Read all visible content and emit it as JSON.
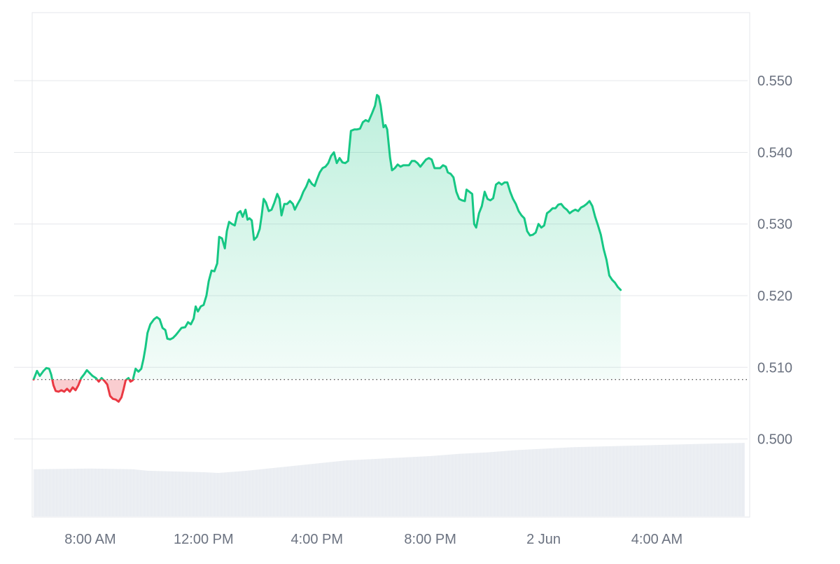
{
  "chart_data": {
    "type": "area",
    "baseline": 0.5083,
    "ylim": [
      0.4892,
      0.5595
    ],
    "grid": true,
    "colors": {
      "up_line": "#16c784",
      "up_fill": "#16c784",
      "down_line": "#ea3943",
      "down_fill": "#ea3943",
      "baseline": "#555555",
      "volume": "#e6eaef",
      "grid": "#e5e7eb",
      "tick_label": "#6b7280"
    },
    "y_ticks": [
      {
        "value": 0.55,
        "label": "0.550"
      },
      {
        "value": 0.54,
        "label": "0.540"
      },
      {
        "value": 0.53,
        "label": "0.530"
      },
      {
        "value": 0.52,
        "label": "0.520"
      },
      {
        "value": 0.51,
        "label": "0.510"
      },
      {
        "value": 0.5,
        "label": "0.500"
      }
    ],
    "x_ticks": [
      {
        "hour": 2,
        "label": "8:00 AM"
      },
      {
        "hour": 6,
        "label": "12:00 PM"
      },
      {
        "hour": 10,
        "label": "4:00 PM"
      },
      {
        "hour": 14,
        "label": "8:00 PM"
      },
      {
        "hour": 18,
        "label": "2 Jun"
      },
      {
        "hour": 22,
        "label": "4:00 AM"
      }
    ],
    "x_range_hours": [
      0,
      25.2
    ],
    "price_series": {
      "name": "Price",
      "points": [
        [
          0.0,
          0.5083
        ],
        [
          0.12,
          0.5095
        ],
        [
          0.22,
          0.5088
        ],
        [
          0.35,
          0.5095
        ],
        [
          0.45,
          0.5099
        ],
        [
          0.55,
          0.5098
        ],
        [
          0.62,
          0.509
        ],
        [
          0.7,
          0.5075
        ],
        [
          0.78,
          0.5067
        ],
        [
          0.88,
          0.5066
        ],
        [
          0.98,
          0.5068
        ],
        [
          1.08,
          0.5066
        ],
        [
          1.18,
          0.507
        ],
        [
          1.28,
          0.5066
        ],
        [
          1.38,
          0.5072
        ],
        [
          1.48,
          0.5068
        ],
        [
          1.58,
          0.5075
        ],
        [
          1.68,
          0.5085
        ],
        [
          1.78,
          0.509
        ],
        [
          1.88,
          0.5096
        ],
        [
          1.98,
          0.5092
        ],
        [
          2.08,
          0.5088
        ],
        [
          2.2,
          0.5085
        ],
        [
          2.3,
          0.508
        ],
        [
          2.4,
          0.5085
        ],
        [
          2.5,
          0.5081
        ],
        [
          2.6,
          0.5076
        ],
        [
          2.7,
          0.506
        ],
        [
          2.8,
          0.5056
        ],
        [
          2.9,
          0.5055
        ],
        [
          3.0,
          0.5052
        ],
        [
          3.1,
          0.5058
        ],
        [
          3.18,
          0.507
        ],
        [
          3.25,
          0.5082
        ],
        [
          3.35,
          0.5085
        ],
        [
          3.42,
          0.508
        ],
        [
          3.5,
          0.5082
        ],
        [
          3.6,
          0.5098
        ],
        [
          3.7,
          0.5094
        ],
        [
          3.8,
          0.5098
        ],
        [
          3.88,
          0.5112
        ],
        [
          3.95,
          0.5128
        ],
        [
          4.02,
          0.5148
        ],
        [
          4.12,
          0.516
        ],
        [
          4.25,
          0.5167
        ],
        [
          4.35,
          0.517
        ],
        [
          4.45,
          0.5167
        ],
        [
          4.55,
          0.5155
        ],
        [
          4.65,
          0.5152
        ],
        [
          4.72,
          0.514
        ],
        [
          4.82,
          0.5139
        ],
        [
          4.92,
          0.5141
        ],
        [
          5.02,
          0.5145
        ],
        [
          5.12,
          0.515
        ],
        [
          5.22,
          0.5155
        ],
        [
          5.35,
          0.5156
        ],
        [
          5.45,
          0.5163
        ],
        [
          5.55,
          0.516
        ],
        [
          5.65,
          0.5168
        ],
        [
          5.72,
          0.5185
        ],
        [
          5.8,
          0.5178
        ],
        [
          5.9,
          0.5185
        ],
        [
          6.0,
          0.5187
        ],
        [
          6.1,
          0.52
        ],
        [
          6.18,
          0.522
        ],
        [
          6.28,
          0.5235
        ],
        [
          6.38,
          0.5234
        ],
        [
          6.48,
          0.5245
        ],
        [
          6.55,
          0.5282
        ],
        [
          6.65,
          0.528
        ],
        [
          6.75,
          0.5266
        ],
        [
          6.82,
          0.529
        ],
        [
          6.9,
          0.5303
        ],
        [
          7.0,
          0.53
        ],
        [
          7.1,
          0.5298
        ],
        [
          7.2,
          0.5315
        ],
        [
          7.3,
          0.5318
        ],
        [
          7.38,
          0.531
        ],
        [
          7.48,
          0.532
        ],
        [
          7.55,
          0.5306
        ],
        [
          7.62,
          0.5308
        ],
        [
          7.7,
          0.5305
        ],
        [
          7.78,
          0.5278
        ],
        [
          7.88,
          0.5282
        ],
        [
          7.98,
          0.5293
        ],
        [
          8.05,
          0.5312
        ],
        [
          8.12,
          0.5335
        ],
        [
          8.2,
          0.533
        ],
        [
          8.3,
          0.5318
        ],
        [
          8.4,
          0.532
        ],
        [
          8.5,
          0.533
        ],
        [
          8.6,
          0.5342
        ],
        [
          8.68,
          0.5335
        ],
        [
          8.75,
          0.5312
        ],
        [
          8.85,
          0.5328
        ],
        [
          8.95,
          0.5328
        ],
        [
          9.05,
          0.5332
        ],
        [
          9.15,
          0.5328
        ],
        [
          9.22,
          0.532
        ],
        [
          9.32,
          0.5328
        ],
        [
          9.42,
          0.5335
        ],
        [
          9.52,
          0.5345
        ],
        [
          9.62,
          0.5352
        ],
        [
          9.72,
          0.5362
        ],
        [
          9.82,
          0.5356
        ],
        [
          9.92,
          0.5353
        ],
        [
          10.0,
          0.5362
        ],
        [
          10.1,
          0.5372
        ],
        [
          10.2,
          0.5378
        ],
        [
          10.3,
          0.538
        ],
        [
          10.4,
          0.5385
        ],
        [
          10.5,
          0.5395
        ],
        [
          10.6,
          0.54
        ],
        [
          10.7,
          0.5385
        ],
        [
          10.8,
          0.5392
        ],
        [
          10.9,
          0.5386
        ],
        [
          11.0,
          0.5385
        ],
        [
          11.1,
          0.5388
        ],
        [
          11.2,
          0.543
        ],
        [
          11.32,
          0.5432
        ],
        [
          11.42,
          0.5432
        ],
        [
          11.52,
          0.5433
        ],
        [
          11.62,
          0.5442
        ],
        [
          11.72,
          0.5445
        ],
        [
          11.82,
          0.5443
        ],
        [
          11.95,
          0.5455
        ],
        [
          12.05,
          0.5465
        ],
        [
          12.12,
          0.548
        ],
        [
          12.18,
          0.5478
        ],
        [
          12.25,
          0.5465
        ],
        [
          12.3,
          0.545
        ],
        [
          12.35,
          0.5435
        ],
        [
          12.42,
          0.5438
        ],
        [
          12.48,
          0.5432
        ],
        [
          12.58,
          0.5393
        ],
        [
          12.65,
          0.5375
        ],
        [
          12.75,
          0.5378
        ],
        [
          12.85,
          0.5383
        ],
        [
          12.95,
          0.538
        ],
        [
          13.05,
          0.5382
        ],
        [
          13.15,
          0.5382
        ],
        [
          13.25,
          0.5382
        ],
        [
          13.35,
          0.5388
        ],
        [
          13.45,
          0.5388
        ],
        [
          13.55,
          0.5385
        ],
        [
          13.65,
          0.538
        ],
        [
          13.75,
          0.5385
        ],
        [
          13.85,
          0.539
        ],
        [
          13.95,
          0.5392
        ],
        [
          14.05,
          0.539
        ],
        [
          14.15,
          0.5378
        ],
        [
          14.25,
          0.5378
        ],
        [
          14.35,
          0.5378
        ],
        [
          14.45,
          0.5382
        ],
        [
          14.55,
          0.538
        ],
        [
          14.62,
          0.5372
        ],
        [
          14.72,
          0.537
        ],
        [
          14.82,
          0.5365
        ],
        [
          14.92,
          0.5345
        ],
        [
          15.02,
          0.5335
        ],
        [
          15.12,
          0.5333
        ],
        [
          15.22,
          0.5332
        ],
        [
          15.28,
          0.5348
        ],
        [
          15.38,
          0.5345
        ],
        [
          15.48,
          0.5342
        ],
        [
          15.55,
          0.53
        ],
        [
          15.62,
          0.5295
        ],
        [
          15.72,
          0.5315
        ],
        [
          15.82,
          0.5325
        ],
        [
          15.92,
          0.5345
        ],
        [
          16.02,
          0.5335
        ],
        [
          16.12,
          0.5333
        ],
        [
          16.22,
          0.5336
        ],
        [
          16.32,
          0.5355
        ],
        [
          16.42,
          0.5358
        ],
        [
          16.52,
          0.5355
        ],
        [
          16.62,
          0.5358
        ],
        [
          16.72,
          0.5358
        ],
        [
          16.82,
          0.5345
        ],
        [
          16.92,
          0.5335
        ],
        [
          17.02,
          0.5328
        ],
        [
          17.12,
          0.5318
        ],
        [
          17.22,
          0.5312
        ],
        [
          17.32,
          0.5308
        ],
        [
          17.42,
          0.529
        ],
        [
          17.52,
          0.5284
        ],
        [
          17.62,
          0.5285
        ],
        [
          17.72,
          0.5288
        ],
        [
          17.82,
          0.53
        ],
        [
          17.92,
          0.5295
        ],
        [
          18.02,
          0.5298
        ],
        [
          18.12,
          0.5315
        ],
        [
          18.22,
          0.5318
        ],
        [
          18.32,
          0.5322
        ],
        [
          18.42,
          0.5322
        ],
        [
          18.52,
          0.5327
        ],
        [
          18.62,
          0.5328
        ],
        [
          18.72,
          0.5323
        ],
        [
          18.82,
          0.532
        ],
        [
          18.92,
          0.5315
        ],
        [
          19.02,
          0.5318
        ],
        [
          19.12,
          0.532
        ],
        [
          19.22,
          0.5318
        ],
        [
          19.32,
          0.5323
        ],
        [
          19.42,
          0.5325
        ],
        [
          19.52,
          0.5328
        ],
        [
          19.62,
          0.5332
        ],
        [
          19.72,
          0.5325
        ],
        [
          19.82,
          0.531
        ],
        [
          19.92,
          0.5298
        ],
        [
          20.02,
          0.5285
        ],
        [
          20.12,
          0.5265
        ],
        [
          20.22,
          0.525
        ],
        [
          20.32,
          0.5228
        ],
        [
          20.42,
          0.5222
        ],
        [
          20.52,
          0.5218
        ],
        [
          20.62,
          0.5212
        ],
        [
          20.72,
          0.5208
        ]
      ]
    },
    "volume_series": {
      "name": "Volume",
      "points": [
        [
          0,
          0.64
        ],
        [
          2,
          0.65
        ],
        [
          3.5,
          0.64
        ],
        [
          4,
          0.62
        ],
        [
          5,
          0.61
        ],
        [
          6,
          0.6
        ],
        [
          6.5,
          0.59
        ],
        [
          7.5,
          0.62
        ],
        [
          8.5,
          0.66
        ],
        [
          9.5,
          0.7
        ],
        [
          10.5,
          0.74
        ],
        [
          11,
          0.76
        ],
        [
          12,
          0.78
        ],
        [
          13,
          0.8
        ],
        [
          14,
          0.82
        ],
        [
          15,
          0.85
        ],
        [
          16,
          0.87
        ],
        [
          17,
          0.9
        ],
        [
          18,
          0.92
        ],
        [
          19,
          0.94
        ],
        [
          20,
          0.95
        ],
        [
          21,
          0.96
        ],
        [
          22,
          0.97
        ],
        [
          23,
          0.98
        ],
        [
          24,
          0.99
        ],
        [
          25.2,
          1.0
        ]
      ]
    }
  }
}
